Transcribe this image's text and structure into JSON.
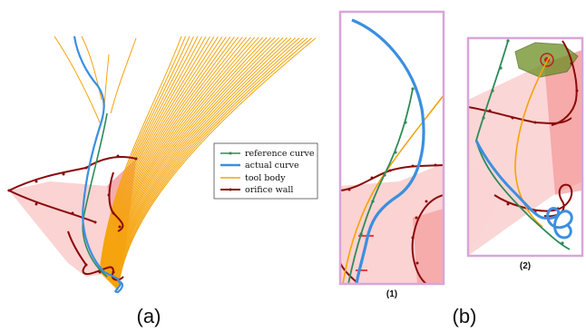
{
  "legend": {
    "items": [
      {
        "label": "reference curve",
        "color": "#2e8b57"
      },
      {
        "label": "actual curve",
        "color": "#3b8fe0"
      },
      {
        "label": "tool body",
        "color": "#f5a30a"
      },
      {
        "label": "orifice wall",
        "color": "#8b0a0a"
      }
    ]
  },
  "captions": {
    "a": "(a)",
    "b": "(b)",
    "b1": "(1)",
    "b2": "(2)"
  },
  "colors": {
    "reference": "#2e8b57",
    "actual": "#3b8fe0",
    "tool": "#f5a30a",
    "wall": "#8b0a0a",
    "cone_fill": "#f7a9a9",
    "panel_border": "#d8a6d8",
    "target_zone": "#6b8e23"
  }
}
